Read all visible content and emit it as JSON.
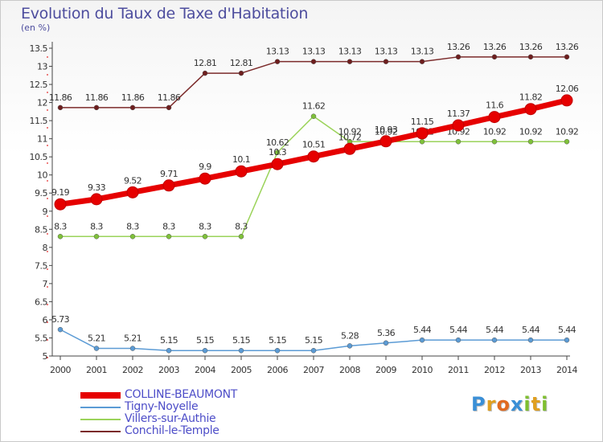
{
  "header": {
    "title": "Evolution du Taux de Taxe d'Habitation",
    "subtitle": "(en %)"
  },
  "logo": {
    "text": "Proxiti",
    "letters": [
      {
        "ch": "P",
        "color": "#3a8fd6"
      },
      {
        "ch": "r",
        "color": "#e0a020"
      },
      {
        "ch": "o",
        "color": "#e06a20"
      },
      {
        "ch": "x",
        "color": "#3a8fd6"
      },
      {
        "ch": "i",
        "color": "#7fbf30"
      },
      {
        "ch": "t",
        "color": "#e0a020"
      },
      {
        "ch": "i",
        "color": "#7fbf30"
      }
    ]
  },
  "chart_data": {
    "type": "line",
    "title": "Evolution du Taux de Taxe d'Habitation",
    "xlabel": "",
    "ylabel": "(en %)",
    "x": [
      "2000",
      "2001",
      "2002",
      "2003",
      "2004",
      "2005",
      "2006",
      "2007",
      "2008",
      "2009",
      "2010",
      "2011",
      "2012",
      "2013",
      "2014"
    ],
    "ylim": [
      5,
      13.5
    ],
    "yticks": [
      "5",
      "5.5",
      "6",
      "6.5",
      "7",
      "7.5",
      "8",
      "8.5",
      "9",
      "9.5",
      "10",
      "10.5",
      "11",
      "11.5",
      "12",
      "12.5",
      "13",
      "13.5"
    ],
    "grid": false,
    "legend_position": "bottom-left",
    "series": [
      {
        "name": "COLLINE-BEAUMONT",
        "color": "#e60000",
        "marker_color": "#e60000",
        "emphasis": "thick",
        "values": [
          9.19,
          9.33,
          9.52,
          9.71,
          9.9,
          10.1,
          10.3,
          10.51,
          10.72,
          10.93,
          11.15,
          11.37,
          11.6,
          11.82,
          12.06
        ],
        "labels": [
          "9.19",
          "9.33",
          "9.52",
          "9.71",
          "9.9",
          "10.1",
          "10.3",
          "10.51",
          "10.72",
          "10.93",
          "11.15",
          "11.37",
          "11.6",
          "11.82",
          "12.06"
        ]
      },
      {
        "name": "Tigny-Noyelle",
        "color": "#5b9bd5",
        "marker_color": "#5b9bd5",
        "emphasis": "thin",
        "values": [
          5.73,
          5.21,
          5.21,
          5.15,
          5.15,
          5.15,
          5.15,
          5.15,
          5.28,
          5.36,
          5.44,
          5.44,
          5.44,
          5.44,
          5.44
        ],
        "labels": [
          "5.73",
          "5.21",
          "5.21",
          "5.15",
          "5.15",
          "5.15",
          "5.15",
          "5.15",
          "5.28",
          "5.36",
          "5.44",
          "5.44",
          "5.44",
          "5.44",
          "5.44"
        ]
      },
      {
        "name": "Villers-sur-Authie",
        "color": "#9bd35a",
        "marker_color": "#7fc13a",
        "emphasis": "thin",
        "values": [
          8.3,
          8.3,
          8.3,
          8.3,
          8.3,
          8.3,
          10.62,
          11.62,
          10.92,
          10.92,
          10.92,
          10.92,
          10.92,
          10.92,
          10.92
        ],
        "labels": [
          "8.3",
          "8.3",
          "8.3",
          "8.3",
          "8.3",
          "8.3",
          "10.62",
          "11.62",
          "10.92",
          "10.92",
          "10.92",
          "10.92",
          "10.92",
          "10.92",
          "10.92"
        ]
      },
      {
        "name": "Conchil-le-Temple",
        "color": "#7b2a2a",
        "marker_color": "#6e1e1e",
        "emphasis": "thin",
        "values": [
          11.86,
          11.86,
          11.86,
          11.86,
          12.81,
          12.81,
          13.13,
          13.13,
          13.13,
          13.13,
          13.13,
          13.26,
          13.26,
          13.26,
          13.26
        ],
        "labels": [
          "11.86",
          "11.86",
          "11.86",
          "11.86",
          "12.81",
          "12.81",
          "13.13",
          "13.13",
          "13.13",
          "13.13",
          "13.13",
          "13.26",
          "13.26",
          "13.26",
          "13.26"
        ]
      }
    ]
  }
}
